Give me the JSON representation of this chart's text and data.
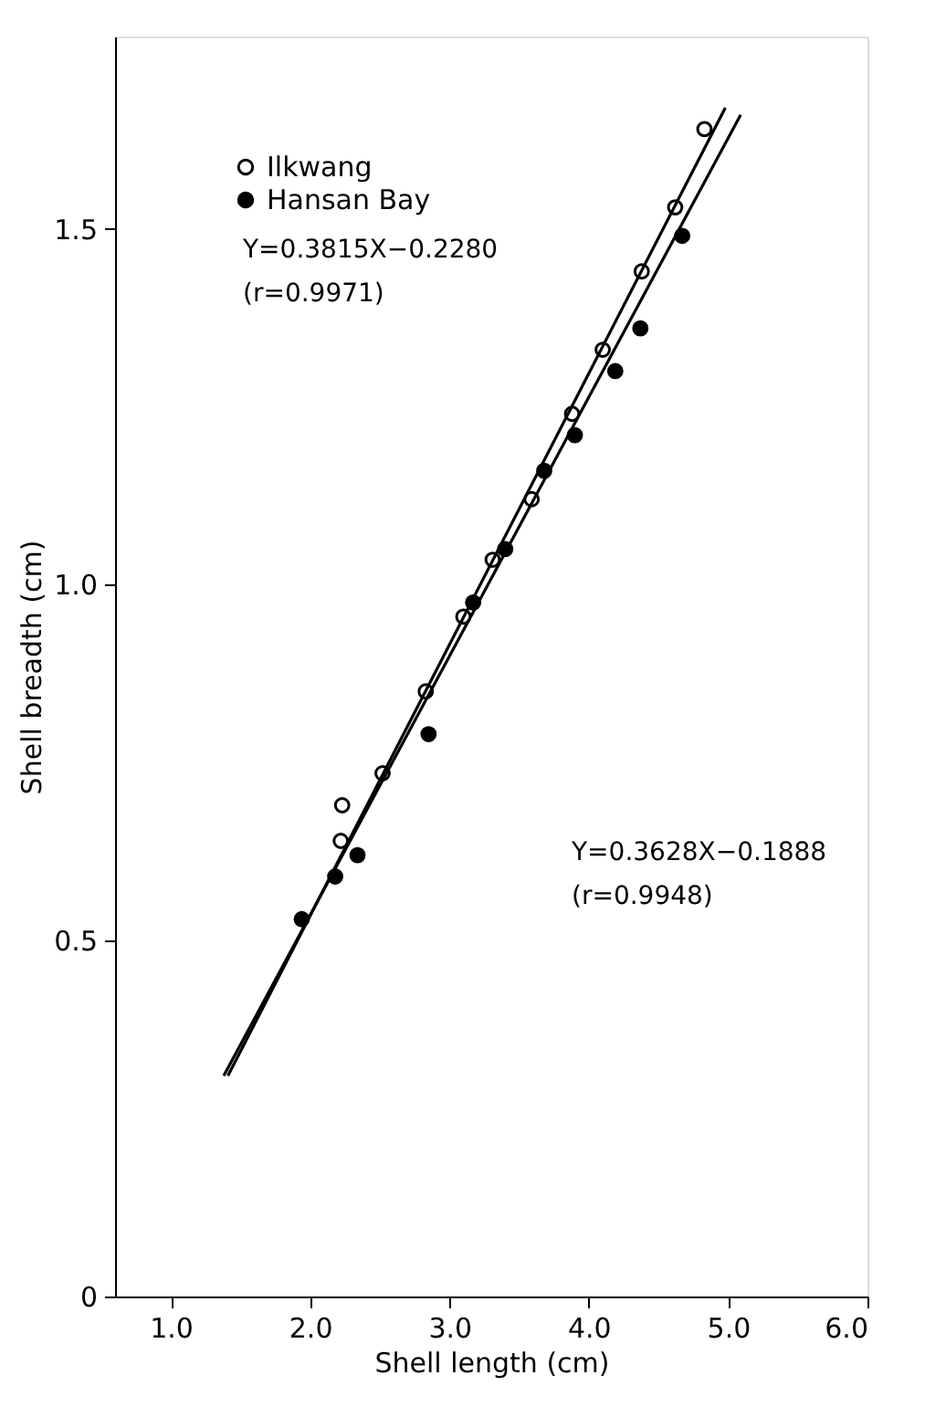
{
  "chart_data": {
    "type": "scatter",
    "xlabel": "Shell length (cm)",
    "ylabel": "Shell breadth (cm)",
    "xlim": [
      0.6,
      6.0
    ],
    "ylim": [
      0,
      1.77
    ],
    "xticks": [
      {
        "value": 1,
        "label": "1.0"
      },
      {
        "value": 2,
        "label": "2.0"
      },
      {
        "value": 3,
        "label": "3.0"
      },
      {
        "value": 4,
        "label": "4.0"
      },
      {
        "value": 5,
        "label": "5.0"
      },
      {
        "value": 6,
        "label": "6.0"
      }
    ],
    "yticks": [
      {
        "value": 0,
        "label": "0"
      },
      0.5,
      {
        "value": 1,
        "label": "1.0"
      },
      1.5
    ],
    "grid": false,
    "legend": "top left",
    "marker": "circle",
    "series": [
      {
        "name": "Ilkwang",
        "color": "#ffffff",
        "x": [
          2.22,
          2.23,
          2.52,
          2.83,
          3.1,
          3.31,
          3.59,
          3.88,
          4.1,
          4.38,
          4.62,
          4.83
        ],
        "values": [
          0.64,
          0.69,
          0.735,
          0.85,
          0.955,
          1.035,
          1.12,
          1.24,
          1.33,
          1.44,
          1.53,
          1.64
        ]
      },
      {
        "name": "Hansan Bay",
        "color": "#000000",
        "x": [
          1.94,
          2.18,
          2.34,
          2.85,
          3.17,
          3.4,
          3.68,
          3.9,
          4.19,
          4.37,
          4.67
        ],
        "values": [
          0.53,
          0.59,
          0.62,
          0.79,
          0.975,
          1.05,
          1.16,
          1.21,
          1.3,
          1.36,
          1.49
        ]
      },
      {
        "type": "line",
        "color": "#000000",
        "line_style": "solid",
        "marker": "none",
        "x": [
          1.41,
          4.98
        ],
        "values": [
          0.31,
          1.67
        ]
      },
      {
        "type": "line",
        "color": "#000000",
        "line_style": "solid",
        "marker": "none",
        "x": [
          1.38,
          5.09
        ],
        "values": [
          0.31,
          1.66
        ]
      }
    ],
    "annotations": [
      "Y=0.3815X−0.2280\n(r=0.9971)",
      "Y=0.3628X−0.1888\n(r=0.9948)"
    ]
  }
}
